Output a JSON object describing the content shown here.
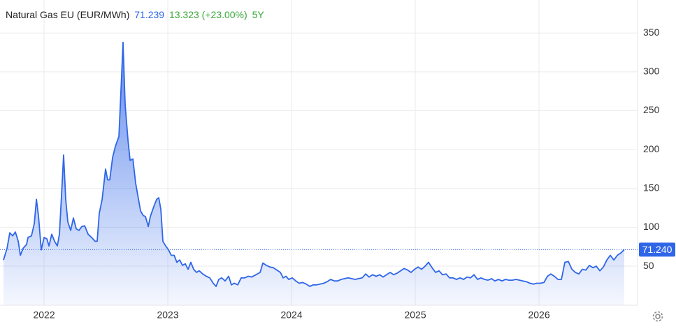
{
  "chart_data": {
    "type": "area",
    "title": "Natural Gas EU (EUR/MWh)",
    "price": "71.239",
    "change": "13.323 (+23.00%)",
    "period": "5Y",
    "last_price": {
      "value": 71.24,
      "label": "71.240"
    },
    "xlim": [
      2021.672,
      2026.785
    ],
    "xticks": [
      2022,
      2023,
      2024,
      2025,
      2026
    ],
    "ylim": [
      0,
      390
    ],
    "yticks": [
      50,
      100,
      150,
      200,
      250,
      300,
      350
    ],
    "grid": true,
    "series": [
      {
        "name": "Natural Gas EU",
        "color": "#2f66e8",
        "x": [
          2021.672,
          2021.701,
          2021.723,
          2021.746,
          2021.768,
          2021.791,
          2021.808,
          2021.831,
          2021.859,
          2021.87,
          2021.898,
          2021.921,
          2021.938,
          2021.955,
          2021.977,
          2022.0,
          2022.023,
          2022.04,
          2022.062,
          2022.085,
          2022.107,
          2022.124,
          2022.141,
          2022.158,
          2022.175,
          2022.192,
          2022.215,
          2022.237,
          2022.26,
          2022.282,
          2022.305,
          2022.328,
          2022.356,
          2022.384,
          2022.412,
          2022.429,
          2022.446,
          2022.469,
          2022.497,
          2022.514,
          2022.531,
          2022.554,
          2022.576,
          2022.605,
          2022.621,
          2022.638,
          2022.655,
          2022.678,
          2022.695,
          2022.718,
          2022.74,
          2022.763,
          2022.78,
          2022.802,
          2022.819,
          2022.842,
          2022.859,
          2022.887,
          2022.91,
          2022.927,
          2022.944,
          2022.96,
          2022.983,
          2023.006,
          2023.028,
          2023.051,
          2023.073,
          2023.096,
          2023.119,
          2023.141,
          2023.164,
          2023.186,
          2023.209,
          2023.232,
          2023.254,
          2023.282,
          2023.311,
          2023.339,
          2023.367,
          2023.39,
          2023.412,
          2023.435,
          2023.463,
          2023.492,
          2023.514,
          2023.537,
          2023.565,
          2023.593,
          2023.621,
          2023.65,
          2023.678,
          2023.712,
          2023.746,
          2023.768,
          2023.797,
          2023.825,
          2023.853,
          2023.881,
          2023.91,
          2023.932,
          2023.955,
          2023.977,
          2024.006,
          2024.034,
          2024.062,
          2024.09,
          2024.119,
          2024.147,
          2024.175,
          2024.203,
          2024.231,
          2024.26,
          2024.288,
          2024.316,
          2024.345,
          2024.373,
          2024.401,
          2024.429,
          2024.458,
          2024.486,
          2024.514,
          2024.542,
          2024.571,
          2024.599,
          2024.627,
          2024.655,
          2024.684,
          2024.712,
          2024.74,
          2024.768,
          2024.797,
          2024.825,
          2024.853,
          2024.881,
          2024.91,
          2024.938,
          2024.966,
          2024.994,
          2025.023,
          2025.051,
          2025.079,
          2025.107,
          2025.136,
          2025.164,
          2025.192,
          2025.22,
          2025.249,
          2025.277,
          2025.305,
          2025.333,
          2025.362,
          2025.39,
          2025.418,
          2025.446,
          2025.475,
          2025.503,
          2025.531,
          2025.559,
          2025.588,
          2025.616,
          2025.644,
          2025.672,
          2025.701,
          2025.729,
          2025.757,
          2025.785,
          2025.814,
          2025.842,
          2025.87,
          2025.898,
          2025.927,
          2025.955,
          2025.983,
          2026.011,
          2026.04,
          2026.068,
          2026.096,
          2026.124,
          2026.153,
          2026.181,
          2026.209,
          2026.237,
          2026.266,
          2026.294,
          2026.322,
          2026.35,
          2026.379,
          2026.407,
          2026.435,
          2026.463,
          2026.492,
          2026.52,
          2026.548,
          2026.576,
          2026.605,
          2026.633,
          2026.661,
          2026.689
        ],
        "values": [
          58,
          73,
          93,
          89,
          94,
          82,
          64,
          73,
          78,
          87,
          89,
          105,
          136,
          114,
          71,
          87,
          85,
          76,
          91,
          82,
          76,
          91,
          141,
          193,
          136,
          107,
          96,
          112,
          98,
          96,
          101,
          102,
          91,
          87,
          82,
          82,
          118,
          136,
          175,
          161,
          161,
          190,
          204,
          217,
          275,
          338,
          258,
          212,
          186,
          188,
          157,
          136,
          121,
          115,
          114,
          101,
          114,
          127,
          136,
          138,
          123,
          82,
          76,
          71,
          64,
          64,
          55,
          58,
          51,
          53,
          46,
          55,
          46,
          42,
          44,
          40,
          37,
          35,
          28,
          24,
          33,
          35,
          31,
          37,
          26,
          28,
          26,
          35,
          35,
          37,
          36,
          39,
          42,
          54,
          51,
          49,
          48,
          45,
          42,
          35,
          37,
          33,
          35,
          31,
          28,
          29,
          27,
          24,
          26,
          26,
          27,
          28,
          30,
          33,
          31,
          31,
          33,
          34,
          35,
          34,
          33,
          34,
          35,
          40,
          36,
          39,
          37,
          39,
          36,
          39,
          42,
          39,
          41,
          44,
          47,
          45,
          42,
          46,
          49,
          46,
          50,
          55,
          48,
          42,
          44,
          39,
          40,
          35,
          35,
          33,
          35,
          33,
          36,
          35,
          39,
          33,
          35,
          33,
          32,
          34,
          31,
          33,
          31,
          33,
          32,
          32,
          33,
          32,
          31,
          30,
          28,
          27,
          28,
          28,
          29,
          37,
          40,
          37,
          33,
          33,
          55,
          56,
          46,
          42,
          40,
          46,
          45,
          51,
          48,
          50,
          44,
          49,
          58,
          64,
          58,
          64,
          67,
          71.24
        ]
      }
    ]
  }
}
